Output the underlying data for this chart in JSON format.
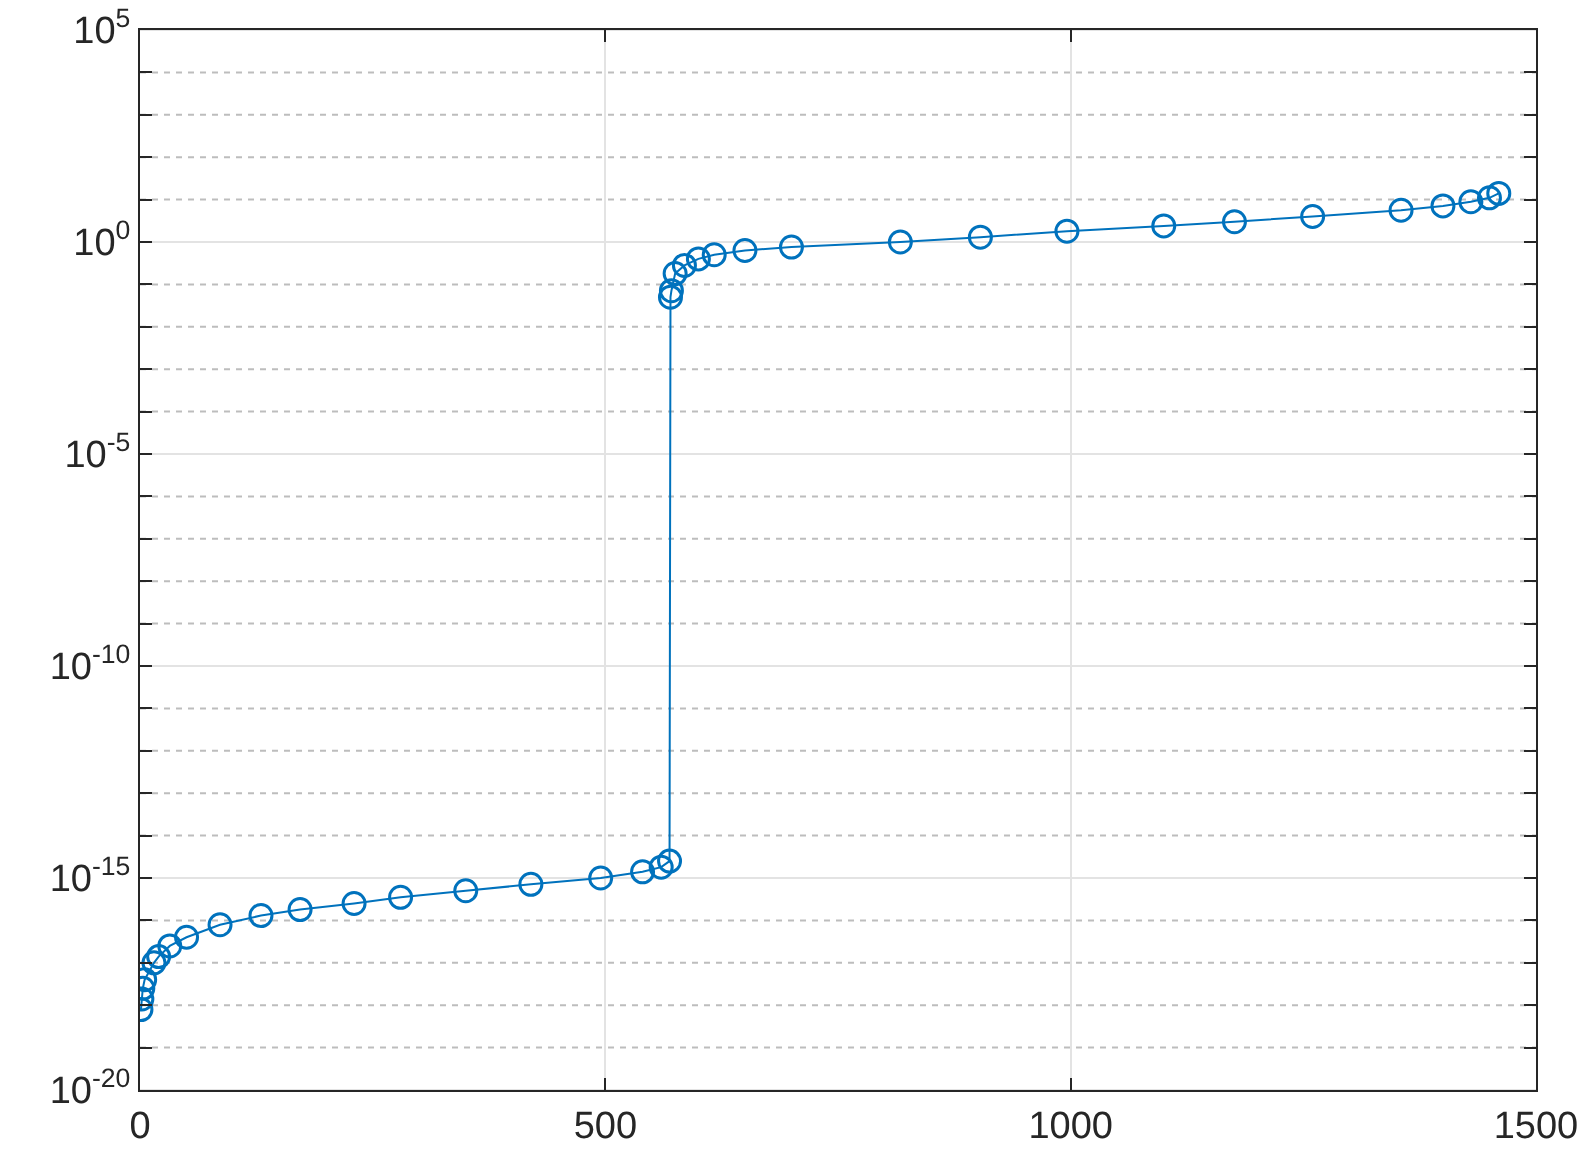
{
  "chart_data": {
    "type": "line",
    "log": "y",
    "grid": true,
    "marker": "circle",
    "line_style": "solid",
    "x": [
      1,
      2,
      3,
      5,
      15,
      20,
      32,
      50,
      86,
      130,
      172,
      230,
      280,
      350,
      420,
      495,
      540,
      560,
      569,
      570,
      571,
      575,
      585,
      600,
      617,
      650,
      700,
      817,
      903,
      996,
      1100,
      1176,
      1260,
      1355,
      1400,
      1430,
      1450,
      1460
    ],
    "series": [
      {
        "color": "#0072bd",
        "values": [
          7.9e-19,
          1.4e-18,
          2.5e-18,
          4e-18,
          1e-17,
          1.4e-17,
          2.5e-17,
          4e-17,
          7.9e-17,
          1.3e-16,
          1.8e-16,
          2.5e-16,
          3.5e-16,
          5e-16,
          7.1e-16,
          1e-15,
          1.4e-15,
          1.8e-15,
          2.5e-15,
          0.05,
          0.071,
          0.18,
          0.28,
          0.4,
          0.5,
          0.63,
          0.76,
          1,
          1.3,
          1.8,
          2.4,
          3,
          4,
          5.6,
          7.1,
          8.9,
          11,
          14
        ]
      }
    ],
    "xlim": [
      0,
      1500
    ],
    "xticks": [
      0,
      500,
      1000,
      1500
    ],
    "ylim": [
      1e-20,
      100000.0
    ],
    "yticks": [
      {
        "value": 1e-20,
        "label": "10$^{-20}$"
      },
      {
        "value": 1e-19,
        "label": null
      },
      {
        "value": 1e-18,
        "label": null
      },
      {
        "value": 1e-17,
        "label": null
      },
      {
        "value": 1e-16,
        "label": null
      },
      {
        "value": 1e-15,
        "label": "10$^{-15}$"
      },
      {
        "value": 1e-14,
        "label": null
      },
      {
        "value": 1e-13,
        "label": null
      },
      {
        "value": 1e-12,
        "label": null
      },
      {
        "value": 1e-11,
        "label": null
      },
      {
        "value": 1e-10,
        "label": "10$^{-10}$"
      },
      {
        "value": 1e-09,
        "label": null
      },
      {
        "value": 1e-08,
        "label": null
      },
      {
        "value": 1e-07,
        "label": null
      },
      {
        "value": 1e-06,
        "label": null
      },
      {
        "value": 1e-05,
        "label": "10$^{-5}$"
      },
      {
        "value": 0.0001,
        "label": null
      },
      {
        "value": 0.001,
        "label": null
      },
      {
        "value": 0.01,
        "label": null
      },
      {
        "value": 0.1,
        "label": null
      },
      {
        "value": 1,
        "label": "10$^{0}$"
      },
      {
        "value": 10,
        "label": null
      },
      {
        "value": 100,
        "label": null
      },
      {
        "value": 1000,
        "label": null
      },
      {
        "value": 10000,
        "label": null
      },
      {
        "value": 100000.0,
        "label": "10$^{5}$"
      }
    ]
  }
}
